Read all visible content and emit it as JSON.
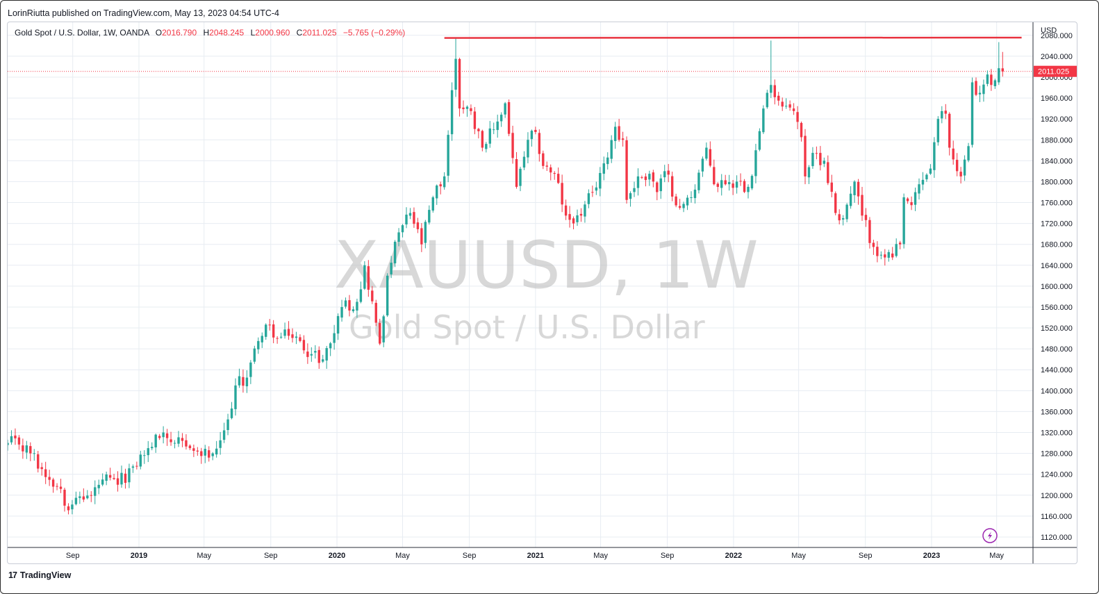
{
  "header": {
    "published": "LorinRiutta published on TradingView.com, May 13, 2023 04:54 UTC-4"
  },
  "legend": {
    "symbol": "Gold Spot / U.S. Dollar, 1W, OANDA",
    "open_label": "O",
    "open": "2016.790",
    "high_label": "H",
    "high": "2048.245",
    "low_label": "L",
    "low": "2000.960",
    "close_label": "C",
    "close": "2011.025",
    "change": "−5.765 (−0.29%)"
  },
  "watermark": {
    "ticker": "XAUUSD, 1W",
    "name": "Gold Spot / U.S. Dollar"
  },
  "footer": {
    "brand": "TradingView",
    "brand_mark": "17"
  },
  "colors": {
    "up": "#26a69a",
    "down": "#f23645",
    "grid": "#e7ecf2",
    "resistance": "#e8333f",
    "last_price_bg": "#f23645",
    "icon": "#9c27b0"
  },
  "icons": {
    "bolt": "lightning-icon"
  },
  "chart_data": {
    "type": "candlestick",
    "currency": "USD",
    "timeframe": "1W",
    "ylim": [
      1100,
      2105
    ],
    "yticks": [
      1120,
      1160,
      1200,
      1240,
      1280,
      1320,
      1360,
      1400,
      1440,
      1480,
      1520,
      1560,
      1600,
      1640,
      1680,
      1720,
      1760,
      1800,
      1840,
      1880,
      1920,
      1960,
      2000,
      2040,
      2080
    ],
    "ytick_labels": [
      "1120.000",
      "1160.000",
      "1200.000",
      "1240.000",
      "1280.000",
      "1320.000",
      "1360.000",
      "1400.000",
      "1440.000",
      "1480.000",
      "1520.000",
      "1560.000",
      "1600.000",
      "1640.000",
      "1680.000",
      "1720.000",
      "1760.000",
      "1800.000",
      "1840.000",
      "1880.000",
      "1920.000",
      "1960.000",
      "2000.000",
      "2040.000",
      "2080.000"
    ],
    "xlim": [
      "2018-05-04",
      "2023-07-07"
    ],
    "xticks": [
      {
        "date": "2018-09-01",
        "label": "Sep",
        "bold": false
      },
      {
        "date": "2019-01-01",
        "label": "2019",
        "bold": true
      },
      {
        "date": "2019-05-01",
        "label": "May",
        "bold": false
      },
      {
        "date": "2019-09-01",
        "label": "Sep",
        "bold": false
      },
      {
        "date": "2020-01-01",
        "label": "2020",
        "bold": true
      },
      {
        "date": "2020-05-01",
        "label": "May",
        "bold": false
      },
      {
        "date": "2020-09-01",
        "label": "Sep",
        "bold": false
      },
      {
        "date": "2021-01-01",
        "label": "2021",
        "bold": true
      },
      {
        "date": "2021-05-01",
        "label": "May",
        "bold": false
      },
      {
        "date": "2021-09-01",
        "label": "Sep",
        "bold": false
      },
      {
        "date": "2022-01-01",
        "label": "2022",
        "bold": true
      },
      {
        "date": "2022-05-01",
        "label": "May",
        "bold": false
      },
      {
        "date": "2022-09-01",
        "label": "Sep",
        "bold": false
      },
      {
        "date": "2023-01-01",
        "label": "2023",
        "bold": true
      },
      {
        "date": "2023-05-01",
        "label": "May",
        "bold": false
      }
    ],
    "last_price": 2011.025,
    "last_price_label": "2011.025",
    "resistance_line": {
      "start": "2020-07-17",
      "end": "2023-06-16",
      "value": 2075
    },
    "close_path": [
      [
        "2018-05-04",
        1300
      ],
      [
        "2018-05-25",
        1297
      ],
      [
        "2018-06-15",
        1280
      ],
      [
        "2018-07-06",
        1250
      ],
      [
        "2018-08-10",
        1212
      ],
      [
        "2018-08-17",
        1180
      ],
      [
        "2018-09-07",
        1195
      ],
      [
        "2018-10-05",
        1200
      ],
      [
        "2018-10-26",
        1230
      ],
      [
        "2018-11-23",
        1220
      ],
      [
        "2018-12-21",
        1255
      ],
      [
        "2019-01-18",
        1290
      ],
      [
        "2019-02-15",
        1320
      ],
      [
        "2019-03-08",
        1300
      ],
      [
        "2019-04-05",
        1290
      ],
      [
        "2019-04-26",
        1275
      ],
      [
        "2019-05-17",
        1280
      ],
      [
        "2019-05-31",
        1305
      ],
      [
        "2019-06-14",
        1345
      ],
      [
        "2019-06-28",
        1410
      ],
      [
        "2019-07-19",
        1425
      ],
      [
        "2019-08-09",
        1495
      ],
      [
        "2019-08-30",
        1525
      ],
      [
        "2019-09-13",
        1500
      ],
      [
        "2019-10-04",
        1505
      ],
      [
        "2019-10-25",
        1495
      ],
      [
        "2019-11-15",
        1470
      ],
      [
        "2019-12-06",
        1460
      ],
      [
        "2019-12-27",
        1510
      ],
      [
        "2020-01-10",
        1560
      ],
      [
        "2020-02-07",
        1570
      ],
      [
        "2020-02-21",
        1640
      ],
      [
        "2020-03-13",
        1530
      ],
      [
        "2020-03-20",
        1490
      ],
      [
        "2020-04-03",
        1620
      ],
      [
        "2020-04-17",
        1685
      ],
      [
        "2020-05-15",
        1740
      ],
      [
        "2020-06-05",
        1680
      ],
      [
        "2020-06-26",
        1770
      ],
      [
        "2020-07-17",
        1810
      ],
      [
        "2020-07-31",
        1975
      ],
      [
        "2020-08-07",
        2035
      ],
      [
        "2020-08-14",
        1940
      ],
      [
        "2020-09-04",
        1935
      ],
      [
        "2020-09-25",
        1865
      ],
      [
        "2020-10-16",
        1900
      ],
      [
        "2020-11-06",
        1950
      ],
      [
        "2020-11-27",
        1790
      ],
      [
        "2020-12-18",
        1880
      ],
      [
        "2021-01-01",
        1895
      ],
      [
        "2021-01-15",
        1830
      ],
      [
        "2021-02-05",
        1815
      ],
      [
        "2021-02-26",
        1735
      ],
      [
        "2021-03-12",
        1720
      ],
      [
        "2021-03-26",
        1735
      ],
      [
        "2021-04-16",
        1780
      ],
      [
        "2021-05-07",
        1835
      ],
      [
        "2021-05-28",
        1905
      ],
      [
        "2021-06-11",
        1880
      ],
      [
        "2021-06-18",
        1765
      ],
      [
        "2021-07-09",
        1810
      ],
      [
        "2021-07-30",
        1815
      ],
      [
        "2021-08-13",
        1780
      ],
      [
        "2021-08-27",
        1820
      ],
      [
        "2021-09-24",
        1750
      ],
      [
        "2021-10-15",
        1770
      ],
      [
        "2021-11-12",
        1865
      ],
      [
        "2021-11-26",
        1795
      ],
      [
        "2021-12-17",
        1795
      ],
      [
        "2022-01-07",
        1800
      ],
      [
        "2022-01-28",
        1790
      ],
      [
        "2022-02-11",
        1860
      ],
      [
        "2022-03-04",
        1970
      ],
      [
        "2022-03-11",
        1985
      ],
      [
        "2022-03-25",
        1955
      ],
      [
        "2022-04-08",
        1945
      ],
      [
        "2022-04-22",
        1935
      ],
      [
        "2022-05-06",
        1885
      ],
      [
        "2022-05-13",
        1810
      ],
      [
        "2022-05-27",
        1855
      ],
      [
        "2022-06-17",
        1840
      ],
      [
        "2022-07-08",
        1740
      ],
      [
        "2022-07-22",
        1730
      ],
      [
        "2022-08-12",
        1800
      ],
      [
        "2022-08-26",
        1735
      ],
      [
        "2022-09-16",
        1675
      ],
      [
        "2022-09-30",
        1660
      ],
      [
        "2022-10-21",
        1655
      ],
      [
        "2022-11-04",
        1680
      ],
      [
        "2022-11-11",
        1770
      ],
      [
        "2022-11-25",
        1755
      ],
      [
        "2022-12-09",
        1795
      ],
      [
        "2022-12-30",
        1825
      ],
      [
        "2023-01-13",
        1920
      ],
      [
        "2023-01-27",
        1930
      ],
      [
        "2023-02-03",
        1865
      ],
      [
        "2023-02-24",
        1810
      ],
      [
        "2023-03-10",
        1868
      ],
      [
        "2023-03-17",
        1990
      ],
      [
        "2023-03-31",
        1970
      ],
      [
        "2023-04-14",
        2005
      ],
      [
        "2023-04-21",
        1985
      ],
      [
        "2023-05-05",
        2017
      ],
      [
        "2023-05-12",
        2011.025
      ]
    ],
    "key_candles": [
      {
        "date": "2020-08-07",
        "open": 1976,
        "high": 2075,
        "low": 1962,
        "close": 2035
      },
      {
        "date": "2022-03-11",
        "open": 1970,
        "high": 2070,
        "low": 1960,
        "close": 1985
      },
      {
        "date": "2023-05-05",
        "open": 1990,
        "high": 2067,
        "low": 1985,
        "close": 2017
      },
      {
        "date": "2023-05-12",
        "open": 2016.79,
        "high": 2048.245,
        "low": 2000.96,
        "close": 2011.025
      }
    ]
  }
}
